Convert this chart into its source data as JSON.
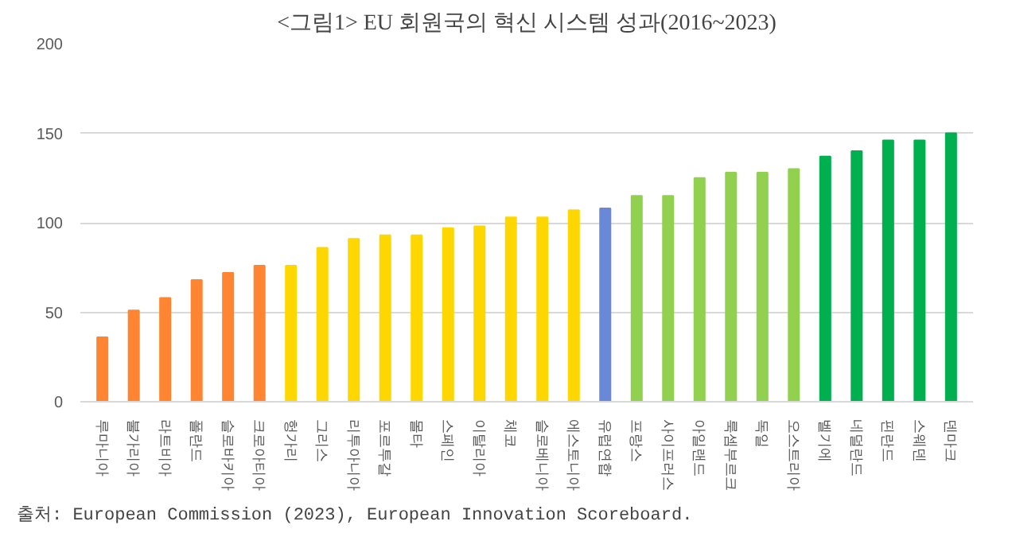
{
  "chart_data": {
    "type": "bar",
    "title": "<그림1> EU 회원국의 혁신 시스템 성과(2016~2023)",
    "categories": [
      "루마니아",
      "불가리아",
      "라트비아",
      "폴란드",
      "슬로바키아",
      "크로아티아",
      "헝가리",
      "그리스",
      "리투아니아",
      "포르투갈",
      "몰타",
      "스페인",
      "이탈리아",
      "체코",
      "슬로베니아",
      "에스토니아",
      "유럽연합",
      "프랑스",
      "사이프러스",
      "아일랜드",
      "룩셈부르크",
      "독일",
      "오스트리아",
      "벨기에",
      "네덜란드",
      "핀란드",
      "스웨덴",
      "덴마크"
    ],
    "values": [
      36,
      51,
      58,
      68,
      72,
      76,
      76,
      86,
      91,
      93,
      93,
      97,
      98,
      103,
      103,
      107,
      108,
      115,
      115,
      125,
      128,
      128,
      130,
      137,
      140,
      146,
      146,
      150
    ],
    "colors": [
      "#ff8533",
      "#ff8533",
      "#ff8533",
      "#ff8533",
      "#ff8533",
      "#ff8533",
      "#ffd700",
      "#ffd700",
      "#ffd700",
      "#ffd700",
      "#ffd700",
      "#ffd700",
      "#ffd700",
      "#ffd700",
      "#ffd700",
      "#ffd700",
      "#6a88d8",
      "#92d050",
      "#92d050",
      "#92d050",
      "#92d050",
      "#92d050",
      "#92d050",
      "#00b050",
      "#00b050",
      "#00b050",
      "#00b050",
      "#00b050"
    ],
    "ylim": [
      0,
      200
    ],
    "yticks": [
      0,
      50,
      100,
      150,
      200
    ],
    "grid": "y",
    "annotations": [
      "출처: European Commission (2023), European Innovation Scoreboard."
    ]
  }
}
